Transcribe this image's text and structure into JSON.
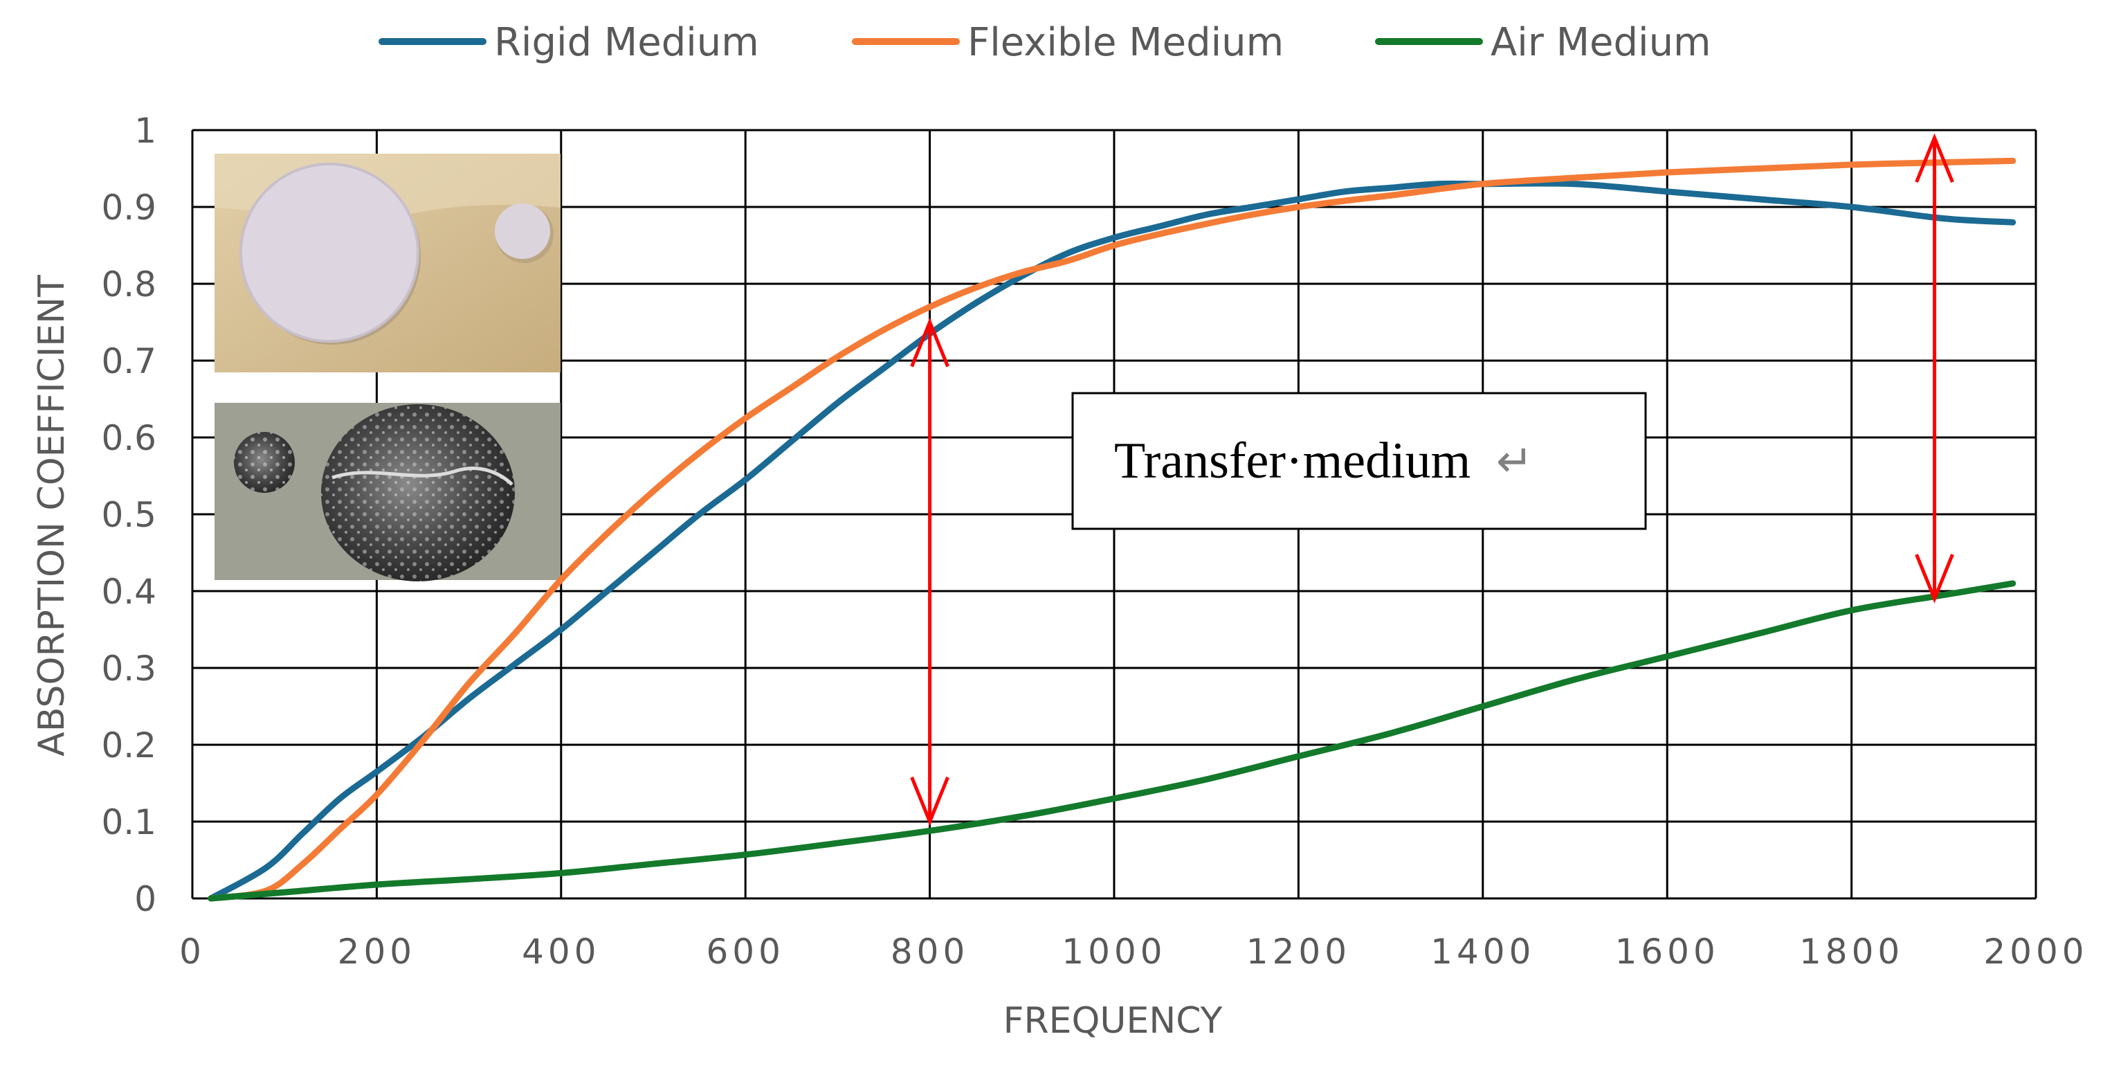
{
  "chart_data": {
    "type": "line",
    "title": "",
    "xlabel": "FREQUENCY",
    "ylabel": "ABSORPTION COEFFICIENT",
    "xlim": [
      0,
      2000
    ],
    "ylim": [
      0,
      1
    ],
    "x_ticks": [
      "0",
      "200",
      "400",
      "600",
      "800",
      "1000",
      "1200",
      "1400",
      "1600",
      "1800",
      "2000"
    ],
    "y_ticks": [
      "0",
      "0.1",
      "0.2",
      "0.3",
      "0.4",
      "0.5",
      "0.6",
      "0.7",
      "0.8",
      "0.9",
      "1"
    ],
    "grid": true,
    "legend_position": "top",
    "series": [
      {
        "name": "Rigid Medium",
        "color": "#1b6a93",
        "points": [
          [
            20,
            0
          ],
          [
            80,
            0.04
          ],
          [
            120,
            0.085
          ],
          [
            160,
            0.13
          ],
          [
            200,
            0.165
          ],
          [
            250,
            0.21
          ],
          [
            300,
            0.26
          ],
          [
            350,
            0.305
          ],
          [
            400,
            0.35
          ],
          [
            450,
            0.4
          ],
          [
            500,
            0.45
          ],
          [
            550,
            0.5
          ],
          [
            600,
            0.545
          ],
          [
            650,
            0.595
          ],
          [
            700,
            0.645
          ],
          [
            750,
            0.69
          ],
          [
            800,
            0.735
          ],
          [
            850,
            0.775
          ],
          [
            900,
            0.81
          ],
          [
            950,
            0.84
          ],
          [
            1000,
            0.86
          ],
          [
            1050,
            0.875
          ],
          [
            1100,
            0.89
          ],
          [
            1150,
            0.9
          ],
          [
            1200,
            0.91
          ],
          [
            1250,
            0.92
          ],
          [
            1300,
            0.925
          ],
          [
            1350,
            0.93
          ],
          [
            1400,
            0.93
          ],
          [
            1500,
            0.93
          ],
          [
            1600,
            0.92
          ],
          [
            1700,
            0.91
          ],
          [
            1800,
            0.9
          ],
          [
            1900,
            0.885
          ],
          [
            1975,
            0.88
          ]
        ]
      },
      {
        "name": "Flexible Medium",
        "color": "#f47b36",
        "points": [
          [
            20,
            0
          ],
          [
            80,
            0.01
          ],
          [
            120,
            0.045
          ],
          [
            160,
            0.09
          ],
          [
            200,
            0.135
          ],
          [
            250,
            0.205
          ],
          [
            300,
            0.28
          ],
          [
            350,
            0.345
          ],
          [
            400,
            0.415
          ],
          [
            450,
            0.475
          ],
          [
            500,
            0.53
          ],
          [
            550,
            0.58
          ],
          [
            600,
            0.625
          ],
          [
            650,
            0.665
          ],
          [
            700,
            0.705
          ],
          [
            750,
            0.74
          ],
          [
            800,
            0.77
          ],
          [
            850,
            0.795
          ],
          [
            900,
            0.815
          ],
          [
            950,
            0.83
          ],
          [
            1000,
            0.85
          ],
          [
            1050,
            0.865
          ],
          [
            1100,
            0.878
          ],
          [
            1150,
            0.89
          ],
          [
            1200,
            0.9
          ],
          [
            1250,
            0.908
          ],
          [
            1300,
            0.915
          ],
          [
            1400,
            0.93
          ],
          [
            1500,
            0.938
          ],
          [
            1600,
            0.945
          ],
          [
            1700,
            0.95
          ],
          [
            1800,
            0.955
          ],
          [
            1900,
            0.958
          ],
          [
            1975,
            0.96
          ]
        ]
      },
      {
        "name": "Air Medium",
        "color": "#137a2b",
        "points": [
          [
            20,
            0
          ],
          [
            100,
            0.008
          ],
          [
            200,
            0.018
          ],
          [
            300,
            0.025
          ],
          [
            400,
            0.033
          ],
          [
            500,
            0.045
          ],
          [
            600,
            0.057
          ],
          [
            700,
            0.072
          ],
          [
            800,
            0.088
          ],
          [
            900,
            0.107
          ],
          [
            1000,
            0.13
          ],
          [
            1100,
            0.155
          ],
          [
            1200,
            0.185
          ],
          [
            1300,
            0.215
          ],
          [
            1400,
            0.25
          ],
          [
            1500,
            0.285
          ],
          [
            1600,
            0.315
          ],
          [
            1700,
            0.345
          ],
          [
            1800,
            0.375
          ],
          [
            1900,
            0.395
          ],
          [
            1975,
            0.41
          ]
        ]
      }
    ],
    "annotations": {
      "text_box": "Transfer·medium",
      "text_box_mark": "↵",
      "arrows": [
        {
          "x": 800,
          "y_from": 0.1,
          "y_to": 0.75,
          "color": "#ff0000"
        },
        {
          "x": 1890,
          "y_from": 0.39,
          "y_to": 0.99,
          "color": "#ff0000"
        }
      ]
    },
    "inset_photos": [
      "rigid-medium-sample-photo",
      "flexible-medium-sample-photo"
    ]
  }
}
